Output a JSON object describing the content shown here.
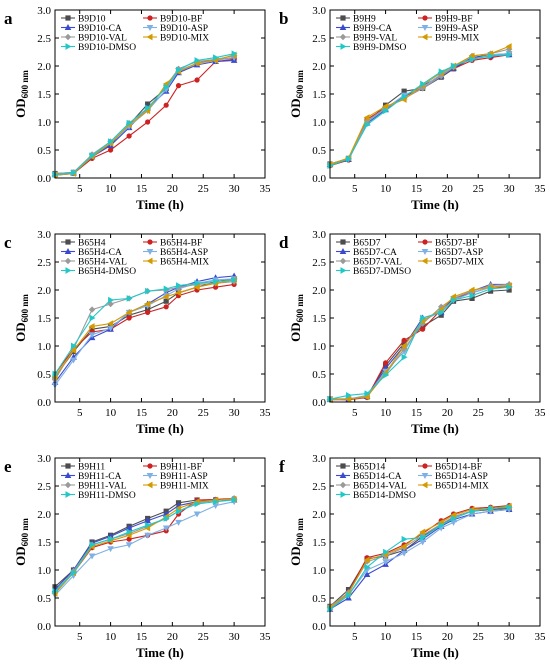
{
  "palette": {
    "ctrl": "#4d4d4d",
    "bf": "#cc2222",
    "ca": "#3a4bd0",
    "asp": "#7fb0e6",
    "val": "#9a9a9a",
    "mix": "#d49a00",
    "dmso": "#22c8c8"
  },
  "markers": {
    "ctrl": "square",
    "bf": "circle",
    "ca": "triangle-up",
    "asp": "triangle-down",
    "val": "diamond",
    "mix": "triangle-left",
    "dmso": "triangle-right"
  },
  "chart_data": [
    {
      "type": "line",
      "panel_label": "a",
      "xlabel": "Time (h)",
      "ylabel": "OD",
      "ylabel_sub": "600 nm",
      "xlim": [
        1,
        35
      ],
      "ylim": [
        0,
        3
      ],
      "xticks": [
        5,
        10,
        15,
        20,
        25,
        30,
        35
      ],
      "yticks": [
        0.0,
        0.5,
        1.0,
        1.5,
        2.0,
        2.5,
        3.0
      ],
      "ytick_labels": [
        "0.0",
        "0.5",
        "1.0",
        "1.5",
        "2.0",
        "2.5",
        "3.0"
      ],
      "legend_position": "top-left",
      "x": [
        1,
        4,
        7,
        10,
        13,
        16,
        19,
        21,
        24,
        27,
        30
      ],
      "series": [
        {
          "key": "ctrl",
          "name": "B9D10",
          "values": [
            0.08,
            0.1,
            0.4,
            0.6,
            0.95,
            1.32,
            1.6,
            1.9,
            2.05,
            2.12,
            2.14
          ]
        },
        {
          "key": "bf",
          "name": "B9D10-BF",
          "values": [
            0.05,
            0.08,
            0.35,
            0.5,
            0.75,
            1.0,
            1.3,
            1.65,
            1.75,
            2.08,
            2.12
          ]
        },
        {
          "key": "ca",
          "name": "B9D10-CA",
          "values": [
            0.07,
            0.09,
            0.38,
            0.58,
            0.9,
            1.25,
            1.55,
            1.88,
            2.02,
            2.08,
            2.1
          ]
        },
        {
          "key": "asp",
          "name": "B9D10-ASP",
          "values": [
            0.06,
            0.1,
            0.4,
            0.62,
            0.92,
            1.2,
            1.58,
            1.92,
            2.05,
            2.1,
            2.15
          ]
        },
        {
          "key": "val",
          "name": "B9D10-VAL",
          "values": [
            0.08,
            0.1,
            0.42,
            0.65,
            0.98,
            1.22,
            1.65,
            1.95,
            2.08,
            2.12,
            2.18
          ]
        },
        {
          "key": "mix",
          "name": "B9D10-MIX",
          "values": [
            0.05,
            0.08,
            0.38,
            0.62,
            0.95,
            1.2,
            1.68,
            1.9,
            2.05,
            2.1,
            2.2
          ]
        },
        {
          "key": "dmso",
          "name": "B9D10-DMSO",
          "values": [
            0.06,
            0.09,
            0.4,
            0.65,
            0.98,
            1.25,
            1.62,
            1.93,
            2.1,
            2.15,
            2.22
          ]
        }
      ]
    },
    {
      "type": "line",
      "panel_label": "b",
      "xlabel": "Time (h)",
      "ylabel": "OD",
      "ylabel_sub": "600 nm",
      "xlim": [
        1,
        35
      ],
      "ylim": [
        0,
        3
      ],
      "xticks": [
        5,
        10,
        15,
        20,
        25,
        30,
        35
      ],
      "yticks": [
        0.0,
        0.5,
        1.0,
        1.5,
        2.0,
        2.5,
        3.0
      ],
      "ytick_labels": [
        "0.0",
        "0.5",
        "1.0",
        "1.5",
        "2.0",
        "2.5",
        "3.0"
      ],
      "legend_position": "top-left",
      "x": [
        1,
        4,
        7,
        10,
        13,
        16,
        19,
        21,
        24,
        27,
        30
      ],
      "series": [
        {
          "key": "ctrl",
          "name": "B9H9",
          "values": [
            0.25,
            0.35,
            1.0,
            1.3,
            1.55,
            1.6,
            1.8,
            1.95,
            2.15,
            2.2,
            2.22
          ]
        },
        {
          "key": "bf",
          "name": "B9H9-BF",
          "values": [
            0.22,
            0.32,
            1.05,
            1.25,
            1.45,
            1.62,
            1.85,
            1.95,
            2.1,
            2.15,
            2.2
          ]
        },
        {
          "key": "ca",
          "name": "B9H9-CA",
          "values": [
            0.24,
            0.33,
            0.98,
            1.22,
            1.45,
            1.65,
            1.82,
            1.96,
            2.15,
            2.18,
            2.2
          ]
        },
        {
          "key": "asp",
          "name": "B9H9-ASP",
          "values": [
            0.23,
            0.34,
            1.0,
            1.24,
            1.48,
            1.62,
            1.85,
            2.0,
            2.12,
            2.2,
            2.22
          ]
        },
        {
          "key": "val",
          "name": "B9H9-VAL",
          "values": [
            0.25,
            0.35,
            1.02,
            1.25,
            1.42,
            1.6,
            1.82,
            1.98,
            2.18,
            2.22,
            2.3
          ]
        },
        {
          "key": "mix",
          "name": "B9H9-MIX",
          "values": [
            0.24,
            0.36,
            1.08,
            1.28,
            1.4,
            1.66,
            1.88,
            2.0,
            2.18,
            2.22,
            2.35
          ]
        },
        {
          "key": "dmso",
          "name": "B9H9-DMSO",
          "values": [
            0.22,
            0.34,
            0.95,
            1.2,
            1.45,
            1.68,
            1.9,
            2.0,
            2.12,
            2.18,
            2.2
          ]
        }
      ]
    },
    {
      "type": "line",
      "panel_label": "c",
      "xlabel": "Time (h)",
      "ylabel": "OD",
      "ylabel_sub": "600 nm",
      "xlim": [
        1,
        35
      ],
      "ylim": [
        0,
        3
      ],
      "xticks": [
        5,
        10,
        15,
        20,
        25,
        30,
        35
      ],
      "yticks": [
        0.0,
        0.5,
        1.0,
        1.5,
        2.0,
        2.5,
        3.0
      ],
      "ytick_labels": [
        "0.0",
        "0.5",
        "1.0",
        "1.5",
        "2.0",
        "2.5",
        "3.0"
      ],
      "legend_position": "top-left",
      "x": [
        1,
        4,
        7,
        10,
        13,
        16,
        19,
        21,
        24,
        27,
        30
      ],
      "series": [
        {
          "key": "ctrl",
          "name": "B65H4",
          "values": [
            0.45,
            0.9,
            1.3,
            1.35,
            1.55,
            1.65,
            1.8,
            1.95,
            2.05,
            2.15,
            2.2
          ]
        },
        {
          "key": "bf",
          "name": "B65H4-BF",
          "values": [
            0.5,
            0.95,
            1.25,
            1.3,
            1.5,
            1.6,
            1.7,
            1.9,
            2.0,
            2.05,
            2.1
          ]
        },
        {
          "key": "ca",
          "name": "B65H4-CA",
          "values": [
            0.35,
            0.8,
            1.15,
            1.3,
            1.6,
            1.75,
            1.95,
            2.05,
            2.15,
            2.22,
            2.25
          ]
        },
        {
          "key": "asp",
          "name": "B65H4-ASP",
          "values": [
            0.3,
            0.75,
            1.2,
            1.32,
            1.6,
            1.72,
            1.9,
            2.02,
            2.12,
            2.18,
            2.2
          ]
        },
        {
          "key": "val",
          "name": "B65H4-VAL",
          "values": [
            0.4,
            0.95,
            1.65,
            1.75,
            1.85,
            1.98,
            2.0,
            2.05,
            2.1,
            2.12,
            2.15
          ]
        },
        {
          "key": "mix",
          "name": "B65H4-MIX",
          "values": [
            0.45,
            0.92,
            1.35,
            1.4,
            1.6,
            1.75,
            1.88,
            1.95,
            2.05,
            2.12,
            2.18
          ]
        },
        {
          "key": "dmso",
          "name": "B65H4-DMSO",
          "values": [
            0.5,
            1.0,
            1.5,
            1.82,
            1.85,
            1.98,
            2.02,
            2.08,
            2.12,
            2.15,
            2.18
          ]
        }
      ]
    },
    {
      "type": "line",
      "panel_label": "d",
      "xlabel": "Time (h)",
      "ylabel": "OD",
      "ylabel_sub": "600 nm",
      "xlim": [
        1,
        35
      ],
      "ylim": [
        0,
        3
      ],
      "xticks": [
        5,
        10,
        15,
        20,
        25,
        30,
        35
      ],
      "yticks": [
        0.0,
        0.5,
        1.0,
        1.5,
        2.0,
        2.5,
        3.0
      ],
      "ytick_labels": [
        "0.0",
        "0.5",
        "1.0",
        "1.5",
        "2.0",
        "2.5",
        "3.0"
      ],
      "legend_position": "top-left",
      "x": [
        1,
        4,
        7,
        10,
        13,
        16,
        19,
        21,
        24,
        27,
        30
      ],
      "series": [
        {
          "key": "ctrl",
          "name": "B65D7",
          "values": [
            0.05,
            0.05,
            0.1,
            0.65,
            1.05,
            1.35,
            1.55,
            1.8,
            1.85,
            1.98,
            2.0
          ]
        },
        {
          "key": "bf",
          "name": "B65D7-BF",
          "values": [
            0.04,
            0.04,
            0.08,
            0.7,
            1.1,
            1.3,
            1.65,
            1.85,
            1.95,
            2.05,
            2.05
          ]
        },
        {
          "key": "ca",
          "name": "B65D7-CA",
          "values": [
            0.05,
            0.04,
            0.1,
            0.6,
            1.0,
            1.5,
            1.6,
            1.85,
            1.98,
            2.1,
            2.1
          ]
        },
        {
          "key": "asp",
          "name": "B65D7-ASP",
          "values": [
            0.06,
            0.05,
            0.12,
            0.55,
            0.9,
            1.45,
            1.62,
            1.82,
            1.95,
            2.05,
            2.08
          ]
        },
        {
          "key": "val",
          "name": "B65D7-VAL",
          "values": [
            0.05,
            0.06,
            0.1,
            0.5,
            0.95,
            1.4,
            1.7,
            1.85,
            1.98,
            2.08,
            2.1
          ]
        },
        {
          "key": "mix",
          "name": "B65D7-MIX",
          "values": [
            0.04,
            0.05,
            0.09,
            0.52,
            1.0,
            1.45,
            1.65,
            1.88,
            2.0,
            2.05,
            2.08
          ]
        },
        {
          "key": "dmso",
          "name": "B65D7-DMSO",
          "values": [
            0.05,
            0.12,
            0.15,
            0.48,
            0.8,
            1.5,
            1.6,
            1.82,
            1.9,
            2.02,
            2.05
          ]
        }
      ]
    },
    {
      "type": "line",
      "panel_label": "e",
      "xlabel": "Time (h)",
      "ylabel": "OD",
      "ylabel_sub": "600 nm",
      "xlim": [
        1,
        35
      ],
      "ylim": [
        0,
        3
      ],
      "xticks": [
        5,
        10,
        15,
        20,
        25,
        30,
        35
      ],
      "yticks": [
        0.0,
        0.5,
        1.0,
        1.5,
        2.0,
        2.5,
        3.0
      ],
      "ytick_labels": [
        "0.0",
        "0.5",
        "1.0",
        "1.5",
        "2.0",
        "2.5",
        "3.0"
      ],
      "legend_position": "top-left",
      "x": [
        1,
        4,
        7,
        10,
        13,
        16,
        19,
        21,
        24,
        27,
        30
      ],
      "series": [
        {
          "key": "ctrl",
          "name": "B9H11",
          "values": [
            0.7,
            1.0,
            1.5,
            1.62,
            1.78,
            1.92,
            2.05,
            2.2,
            2.25,
            2.25,
            2.25
          ]
        },
        {
          "key": "bf",
          "name": "B9H11-BF",
          "values": [
            0.6,
            0.95,
            1.4,
            1.5,
            1.55,
            1.62,
            1.7,
            2.0,
            2.25,
            2.26,
            2.28
          ]
        },
        {
          "key": "ca",
          "name": "B9H11-CA",
          "values": [
            0.65,
            1.0,
            1.48,
            1.6,
            1.75,
            1.88,
            2.0,
            2.15,
            2.22,
            2.25,
            2.25
          ]
        },
        {
          "key": "asp",
          "name": "B9H11-ASP",
          "values": [
            0.55,
            0.9,
            1.25,
            1.38,
            1.45,
            1.62,
            1.75,
            1.85,
            2.0,
            2.15,
            2.22
          ]
        },
        {
          "key": "val",
          "name": "B9H11-VAL",
          "values": [
            0.6,
            0.98,
            1.45,
            1.55,
            1.65,
            1.78,
            1.92,
            2.05,
            2.2,
            2.24,
            2.28
          ]
        },
        {
          "key": "mix",
          "name": "B9H11-MIX",
          "values": [
            0.58,
            0.95,
            1.42,
            1.52,
            1.62,
            1.75,
            1.95,
            2.1,
            2.22,
            2.25,
            2.26
          ]
        },
        {
          "key": "dmso",
          "name": "B9H11-DMSO",
          "values": [
            0.62,
            0.95,
            1.45,
            1.55,
            1.68,
            1.8,
            1.92,
            2.05,
            2.18,
            2.22,
            2.25
          ]
        }
      ]
    },
    {
      "type": "line",
      "panel_label": "f",
      "xlabel": "Time (h)",
      "ylabel": "OD",
      "ylabel_sub": "600 nm",
      "xlim": [
        1,
        35
      ],
      "ylim": [
        0,
        3
      ],
      "xticks": [
        5,
        10,
        15,
        20,
        25,
        30,
        35
      ],
      "yticks": [
        0.0,
        0.5,
        1.0,
        1.5,
        2.0,
        2.5,
        3.0
      ],
      "ytick_labels": [
        "0.0",
        "0.5",
        "1.0",
        "1.5",
        "2.0",
        "2.5",
        "3.0"
      ],
      "legend_position": "top-left",
      "x": [
        1,
        4,
        7,
        10,
        13,
        16,
        19,
        21,
        24,
        27,
        30
      ],
      "series": [
        {
          "key": "ctrl",
          "name": "B65D14",
          "values": [
            0.35,
            0.65,
            1.2,
            1.25,
            1.35,
            1.6,
            1.8,
            1.95,
            2.05,
            2.08,
            2.1
          ]
        },
        {
          "key": "bf",
          "name": "B65D14-BF",
          "values": [
            0.3,
            0.6,
            1.22,
            1.3,
            1.45,
            1.65,
            1.88,
            2.0,
            2.1,
            2.12,
            2.15
          ]
        },
        {
          "key": "ca",
          "name": "B65D14-CA",
          "values": [
            0.3,
            0.5,
            0.92,
            1.1,
            1.35,
            1.55,
            1.78,
            1.9,
            2.0,
            2.05,
            2.08
          ]
        },
        {
          "key": "asp",
          "name": "B65D14-ASP",
          "values": [
            0.32,
            0.55,
            1.0,
            1.15,
            1.3,
            1.5,
            1.75,
            1.85,
            2.0,
            2.05,
            2.08
          ]
        },
        {
          "key": "val",
          "name": "B65D14-VAL",
          "values": [
            0.35,
            0.6,
            1.15,
            1.25,
            1.4,
            1.62,
            1.82,
            1.95,
            2.05,
            2.1,
            2.12
          ]
        },
        {
          "key": "mix",
          "name": "B65D14-MIX",
          "values": [
            0.33,
            0.58,
            1.18,
            1.28,
            1.42,
            1.68,
            1.85,
            1.98,
            2.08,
            2.1,
            2.14
          ]
        },
        {
          "key": "dmso",
          "name": "B65D14-DMSO",
          "values": [
            0.3,
            0.55,
            1.05,
            1.32,
            1.55,
            1.58,
            1.8,
            1.92,
            2.05,
            2.1,
            2.12
          ]
        }
      ]
    }
  ]
}
